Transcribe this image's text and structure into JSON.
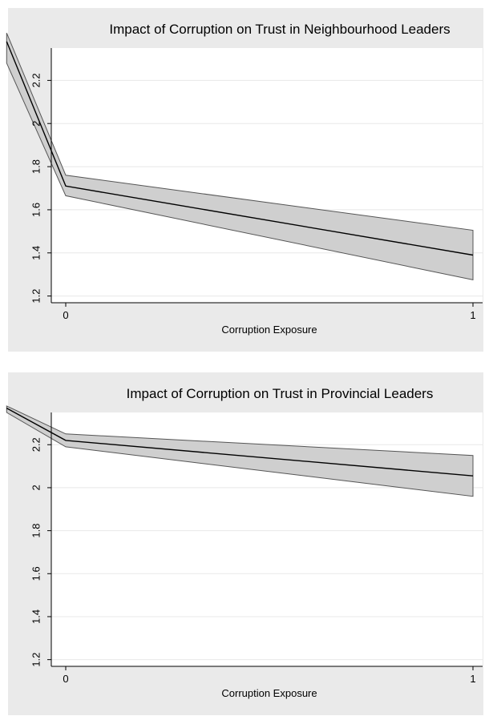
{
  "chart_data": [
    {
      "type": "line",
      "title": "Impact of Corruption on Trust in Neighbourhood Leaders",
      "xlabel": "Corruption Exposure",
      "ylabel": "",
      "x_ticks": [
        "0",
        "1"
      ],
      "y_ticks": [
        "1.2",
        "1.4",
        "1.6",
        "1.8",
        "2",
        "2.2"
      ],
      "xlim": [
        0,
        1
      ],
      "ylim": [
        1.18,
        2.35
      ],
      "grid": true,
      "series": [
        {
          "x": [
            -0.145,
            0,
            1
          ],
          "y": [
            2.38,
            1.71,
            1.39
          ],
          "lower": [
            2.28,
            1.665,
            1.275
          ],
          "upper": [
            2.42,
            1.76,
            1.505
          ]
        }
      ]
    },
    {
      "type": "line",
      "title": "Impact of Corruption on Trust in Provincial Leaders",
      "xlabel": "Corruption Exposure",
      "ylabel": "",
      "x_ticks": [
        "0",
        "1"
      ],
      "y_ticks": [
        "1.2",
        "1.4",
        "1.6",
        "1.8",
        "2",
        "2.2"
      ],
      "xlim": [
        0,
        1
      ],
      "ylim": [
        1.18,
        2.35
      ],
      "grid": true,
      "series": [
        {
          "x": [
            -0.145,
            0,
            1
          ],
          "y": [
            2.37,
            2.22,
            2.055
          ],
          "lower": [
            2.35,
            2.19,
            1.96
          ],
          "upper": [
            2.38,
            2.25,
            2.15
          ]
        }
      ]
    }
  ]
}
